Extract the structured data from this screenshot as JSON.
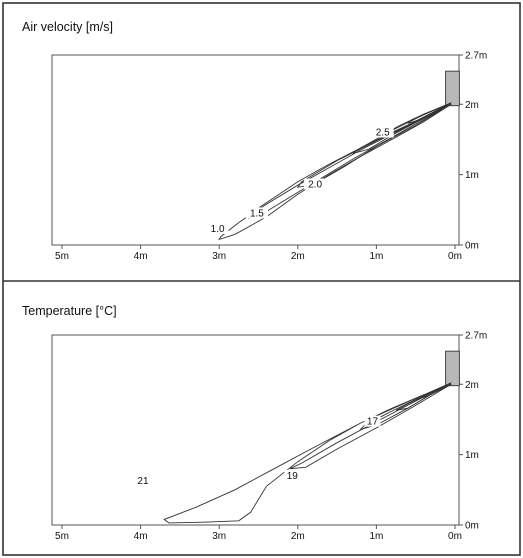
{
  "colors": {
    "border": "#333333",
    "line": "#333333",
    "device": "#b8b8b8"
  },
  "chart_data": [
    {
      "type": "line",
      "title": "Air velocity [m/s]",
      "xticks": [
        "5m",
        "4m",
        "3m",
        "2m",
        "1m",
        "0m"
      ],
      "yticks": [
        "0m",
        "1m",
        "2m",
        "2.7m"
      ],
      "xlim": [
        5,
        0
      ],
      "ylim": [
        0,
        2.7
      ],
      "grid": false,
      "series": [
        {
          "name": "1.0",
          "contour": true,
          "label_at": [
            3.02,
            0.2
          ],
          "x": [
            0.05,
            0.4,
            0.8,
            1.2,
            1.6,
            2.0,
            2.4,
            2.75,
            2.98,
            3.0,
            2.8,
            2.4,
            2.0,
            1.6,
            1.2,
            0.8,
            0.4,
            0.05
          ],
          "y": [
            2.02,
            1.8,
            1.58,
            1.35,
            1.1,
            0.85,
            0.58,
            0.32,
            0.12,
            0.08,
            0.15,
            0.4,
            0.72,
            1.0,
            1.26,
            1.5,
            1.75,
            2.0
          ]
        },
        {
          "name": "1.5",
          "contour": true,
          "label_at": [
            2.52,
            0.42
          ],
          "x": [
            0.05,
            0.4,
            0.8,
            1.2,
            1.6,
            2.0,
            2.4,
            2.6,
            2.62,
            2.45,
            2.1,
            1.7,
            1.3,
            0.9,
            0.5,
            0.05
          ],
          "y": [
            2.02,
            1.81,
            1.6,
            1.38,
            1.15,
            0.9,
            0.6,
            0.45,
            0.38,
            0.44,
            0.68,
            0.95,
            1.22,
            1.47,
            1.72,
            2.0
          ]
        },
        {
          "name": "2.0",
          "contour": true,
          "label_at": [
            1.78,
            0.83
          ],
          "x": [
            0.05,
            0.5,
            1.0,
            1.5,
            1.95,
            2.0,
            1.8,
            1.4,
            1.0,
            0.5,
            0.05
          ],
          "y": [
            2.02,
            1.76,
            1.48,
            1.2,
            0.9,
            0.82,
            0.86,
            1.12,
            1.4,
            1.7,
            2.0
          ]
        },
        {
          "name": "2.5",
          "contour": true,
          "label_at": [
            0.92,
            1.57
          ],
          "x": [
            0.05,
            0.4,
            0.8,
            1.2,
            1.3,
            1.1,
            0.8,
            0.4,
            0.05
          ],
          "y": [
            2.02,
            1.85,
            1.63,
            1.38,
            1.3,
            1.36,
            1.56,
            1.8,
            2.0
          ]
        },
        {
          "name": "",
          "contour": true,
          "x": [
            0.05,
            0.4,
            0.7,
            0.9,
            0.8,
            0.5,
            0.2,
            0.05
          ],
          "y": [
            2.02,
            1.86,
            1.7,
            1.58,
            1.58,
            1.76,
            1.92,
            2.0
          ]
        },
        {
          "name": "",
          "contour": true,
          "x": [
            0.05,
            0.3,
            0.55,
            0.6,
            0.45,
            0.2,
            0.05
          ],
          "y": [
            2.02,
            1.9,
            1.78,
            1.73,
            1.78,
            1.92,
            2.0
          ]
        }
      ]
    },
    {
      "type": "line",
      "title": "Temperature [°C]",
      "xticks": [
        "5m",
        "4m",
        "3m",
        "2m",
        "1m",
        "0m"
      ],
      "yticks": [
        "0m",
        "1m",
        "2m",
        "2.7m"
      ],
      "xlim": [
        5,
        0
      ],
      "ylim": [
        0,
        2.7
      ],
      "grid": false,
      "series": [
        {
          "name": "21",
          "contour": true,
          "label_at": [
            3.97,
            0.6
          ],
          "x": [
            0.05,
            0.6,
            1.2,
            1.8,
            2.3,
            2.8,
            3.3,
            3.7,
            3.64,
            3.2,
            2.75,
            2.6,
            2.4,
            2.0,
            1.6,
            1.2,
            0.8,
            0.4,
            0.05
          ],
          "y": [
            2.02,
            1.75,
            1.45,
            1.1,
            0.8,
            0.5,
            0.25,
            0.08,
            0.03,
            0.04,
            0.06,
            0.18,
            0.55,
            0.9,
            1.2,
            1.45,
            1.66,
            1.85,
            2.0
          ]
        },
        {
          "name": "19",
          "contour": true,
          "label_at": [
            2.07,
            0.67
          ],
          "x": [
            0.05,
            0.5,
            1.0,
            1.5,
            1.95,
            2.1,
            1.9,
            1.5,
            1.0,
            0.5,
            0.05
          ],
          "y": [
            2.02,
            1.76,
            1.47,
            1.17,
            0.88,
            0.8,
            0.82,
            1.08,
            1.38,
            1.7,
            2.0
          ]
        },
        {
          "name": "17",
          "contour": true,
          "label_at": [
            1.05,
            1.44
          ],
          "x": [
            0.05,
            0.4,
            0.8,
            1.15,
            1.2,
            1.0,
            0.6,
            0.3,
            0.05
          ],
          "y": [
            2.02,
            1.84,
            1.62,
            1.42,
            1.36,
            1.42,
            1.66,
            1.86,
            2.0
          ]
        },
        {
          "name": "",
          "contour": true,
          "x": [
            0.05,
            0.3,
            0.6,
            0.75,
            0.6,
            0.3,
            0.05
          ],
          "y": [
            2.02,
            1.88,
            1.72,
            1.63,
            1.66,
            1.86,
            2.0
          ]
        },
        {
          "name": "",
          "contour": true,
          "x": [
            0.05,
            0.25,
            0.45,
            0.5,
            0.35,
            0.15,
            0.05
          ],
          "y": [
            2.02,
            1.92,
            1.82,
            1.78,
            1.83,
            1.95,
            2.0
          ]
        }
      ]
    }
  ]
}
